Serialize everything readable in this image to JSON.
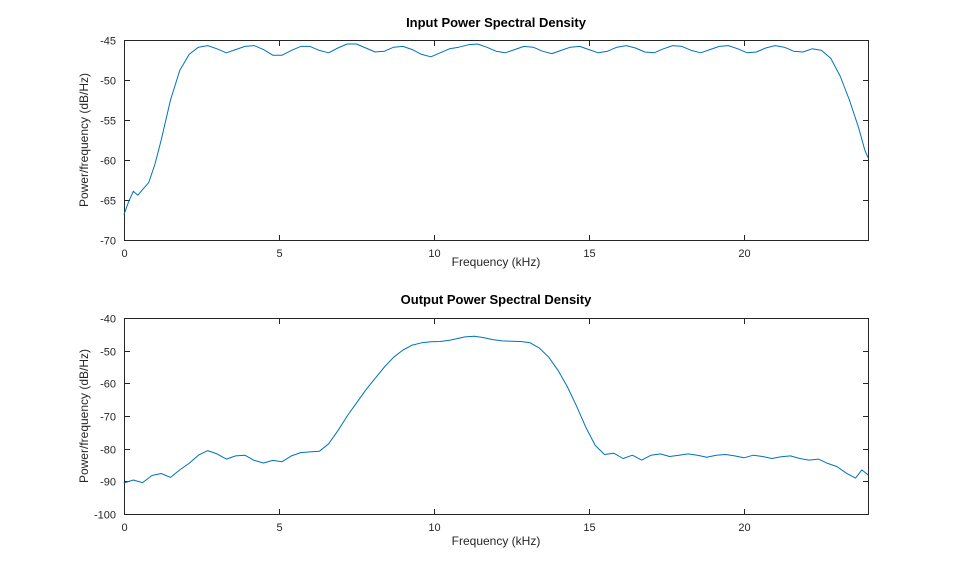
{
  "figure": {
    "background": "#ffffff",
    "axis_color": "#262626",
    "line_color": "#0072BD",
    "title_color": "#000000"
  },
  "chart_data": [
    {
      "type": "line",
      "title": "Input Power Spectral Density",
      "xlabel": "Frequency (kHz)",
      "ylabel": "Power/frequency (dB/Hz)",
      "xlim": [
        0,
        24
      ],
      "ylim": [
        -70,
        -45
      ],
      "xticks": [
        0,
        5,
        10,
        15,
        20
      ],
      "yticks": [
        -70,
        -65,
        -60,
        -55,
        -50,
        -45
      ],
      "grid": false,
      "legend": "none",
      "x": [
        0,
        0.15,
        0.3,
        0.45,
        0.6,
        0.8,
        1.0,
        1.2,
        1.5,
        1.8,
        2.1,
        2.4,
        2.7,
        3.0,
        3.3,
        3.6,
        3.9,
        4.2,
        4.5,
        4.8,
        5.1,
        5.4,
        5.7,
        6.0,
        6.3,
        6.6,
        6.9,
        7.2,
        7.5,
        7.8,
        8.1,
        8.4,
        8.7,
        9.0,
        9.3,
        9.6,
        9.9,
        10.2,
        10.5,
        10.8,
        11.1,
        11.4,
        11.7,
        12.0,
        12.3,
        12.6,
        12.9,
        13.2,
        13.5,
        13.8,
        14.1,
        14.4,
        14.7,
        15.0,
        15.3,
        15.6,
        15.9,
        16.2,
        16.5,
        16.8,
        17.1,
        17.4,
        17.7,
        18.0,
        18.3,
        18.6,
        18.9,
        19.2,
        19.5,
        19.8,
        20.1,
        20.4,
        20.7,
        21.0,
        21.3,
        21.6,
        21.9,
        22.2,
        22.5,
        22.8,
        23.1,
        23.4,
        23.7,
        23.9,
        24
      ],
      "y": [
        -66.8,
        -65.2,
        -63.9,
        -64.4,
        -63.7,
        -62.8,
        -60.5,
        -57.5,
        -52.5,
        -48.8,
        -46.8,
        -45.9,
        -45.7,
        -46.1,
        -46.6,
        -46.2,
        -45.8,
        -45.7,
        -46.2,
        -46.9,
        -46.9,
        -46.3,
        -45.8,
        -45.8,
        -46.3,
        -46.6,
        -46.0,
        -45.5,
        -45.5,
        -46.0,
        -46.5,
        -46.4,
        -45.9,
        -45.8,
        -46.2,
        -46.8,
        -47.1,
        -46.6,
        -46.1,
        -45.9,
        -45.6,
        -45.5,
        -45.9,
        -46.4,
        -46.6,
        -46.2,
        -45.8,
        -45.9,
        -46.4,
        -46.7,
        -46.3,
        -45.9,
        -45.8,
        -46.2,
        -46.6,
        -46.4,
        -45.9,
        -45.7,
        -46.0,
        -46.5,
        -46.6,
        -46.1,
        -45.7,
        -45.8,
        -46.3,
        -46.6,
        -46.2,
        -45.8,
        -45.7,
        -46.1,
        -46.6,
        -46.5,
        -46.0,
        -45.7,
        -45.9,
        -46.4,
        -46.5,
        -46.1,
        -46.3,
        -47.3,
        -49.5,
        -52.5,
        -56.0,
        -58.8,
        -59.7
      ]
    },
    {
      "type": "line",
      "title": "Output Power Spectral Density",
      "xlabel": "Frequency (kHz)",
      "ylabel": "Power/frequency (dB/Hz)",
      "xlim": [
        0,
        24
      ],
      "ylim": [
        -100,
        -40
      ],
      "xticks": [
        0,
        5,
        10,
        15,
        20
      ],
      "yticks": [
        -100,
        -90,
        -80,
        -70,
        -60,
        -50,
        -40
      ],
      "grid": false,
      "legend": "none",
      "x": [
        0,
        0.3,
        0.6,
        0.9,
        1.2,
        1.5,
        1.8,
        2.1,
        2.4,
        2.7,
        3.0,
        3.3,
        3.6,
        3.9,
        4.2,
        4.5,
        4.8,
        5.1,
        5.4,
        5.7,
        6.0,
        6.3,
        6.6,
        6.9,
        7.2,
        7.5,
        7.8,
        8.1,
        8.4,
        8.7,
        9.0,
        9.3,
        9.6,
        9.9,
        10.2,
        10.5,
        10.8,
        11.0,
        11.3,
        11.6,
        11.9,
        12.2,
        12.5,
        12.8,
        13.1,
        13.4,
        13.7,
        14.0,
        14.3,
        14.6,
        14.9,
        15.2,
        15.5,
        15.8,
        16.1,
        16.4,
        16.7,
        17.0,
        17.3,
        17.6,
        17.9,
        18.2,
        18.5,
        18.8,
        19.1,
        19.4,
        19.7,
        20.0,
        20.3,
        20.6,
        20.9,
        21.2,
        21.5,
        21.8,
        22.1,
        22.4,
        22.7,
        23.0,
        23.3,
        23.6,
        23.8,
        24
      ],
      "y": [
        -90.5,
        -89.6,
        -90.4,
        -88.2,
        -87.6,
        -88.8,
        -86.5,
        -84.5,
        -82.0,
        -80.6,
        -81.6,
        -83.2,
        -82.2,
        -82.0,
        -83.6,
        -84.4,
        -83.6,
        -84.0,
        -82.2,
        -81.2,
        -81.0,
        -80.8,
        -78.5,
        -74.5,
        -70.0,
        -66.0,
        -62.0,
        -58.5,
        -55.0,
        -52.0,
        -49.8,
        -48.3,
        -47.6,
        -47.3,
        -47.2,
        -46.8,
        -46.2,
        -45.8,
        -45.6,
        -46.0,
        -46.6,
        -47.0,
        -47.1,
        -47.2,
        -47.6,
        -49.2,
        -52.0,
        -56.0,
        -61.0,
        -67.0,
        -73.5,
        -79.0,
        -81.8,
        -81.4,
        -83.0,
        -82.0,
        -83.5,
        -82.0,
        -81.6,
        -82.4,
        -82.0,
        -81.6,
        -82.0,
        -82.6,
        -82.0,
        -81.8,
        -82.2,
        -82.8,
        -82.0,
        -82.4,
        -83.0,
        -82.5,
        -82.2,
        -83.0,
        -83.5,
        -83.2,
        -84.5,
        -85.5,
        -87.5,
        -89.0,
        -86.5,
        -88.0
      ]
    }
  ]
}
